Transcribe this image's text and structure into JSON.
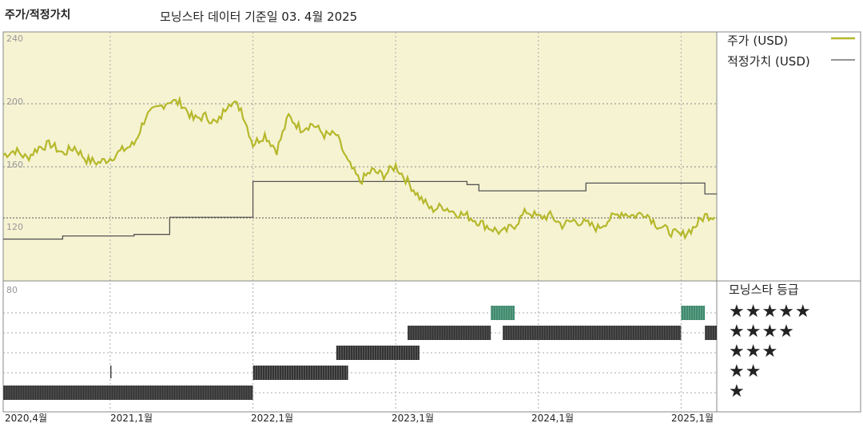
{
  "header": {
    "title": "주가/적정가치",
    "subtitle": "모닝스타 데이터 기준일 03. 4월 2025"
  },
  "legend": {
    "price_label": "주가 (USD)",
    "fair_label": "적정가치 (USD)",
    "price_color": "#b5b82a",
    "fair_color": "#555555"
  },
  "rating": {
    "title": "모닝스타 등급",
    "stars": [
      "★★★★★",
      "★★★★",
      "★★★",
      "★★",
      "★"
    ]
  },
  "chart_data": {
    "type": "line",
    "y_ticks": [
      "240",
      "200",
      "160",
      "120",
      "80"
    ],
    "ylim": [
      80,
      240
    ],
    "x_ticks": [
      "2020,4월",
      "2021,1월",
      "2022,1월",
      "2023,1월",
      "2024,1월",
      "2025,1월"
    ],
    "x_tick_dates": [
      "2020-04",
      "2021-01",
      "2022-01",
      "2023-01",
      "2024-01",
      "2025-01"
    ],
    "price_series": {
      "name": "주가 (USD)",
      "x": [
        "2020-04",
        "2020-05",
        "2020-06",
        "2020-07",
        "2020-08",
        "2020-09",
        "2020-10",
        "2020-11",
        "2020-12",
        "2021-01",
        "2021-02",
        "2021-03",
        "2021-04",
        "2021-05",
        "2021-06",
        "2021-07",
        "2021-08",
        "2021-09",
        "2021-10",
        "2021-11",
        "2021-12",
        "2022-01",
        "2022-02",
        "2022-03",
        "2022-04",
        "2022-05",
        "2022-06",
        "2022-07",
        "2022-08",
        "2022-09",
        "2022-10",
        "2022-11",
        "2022-12",
        "2023-01",
        "2023-02",
        "2023-03",
        "2023-04",
        "2023-05",
        "2023-06",
        "2023-07",
        "2023-08",
        "2023-09",
        "2023-10",
        "2023-11",
        "2023-12",
        "2024-01",
        "2024-02",
        "2024-03",
        "2024-04",
        "2024-05",
        "2024-06",
        "2024-07",
        "2024-08",
        "2024-09",
        "2024-10",
        "2024-11",
        "2024-12",
        "2025-01",
        "2025-02",
        "2025-03"
      ],
      "values": [
        165,
        168,
        163,
        170,
        172,
        166,
        170,
        162,
        160,
        163,
        168,
        172,
        190,
        195,
        200,
        198,
        188,
        190,
        185,
        200,
        195,
        172,
        178,
        168,
        190,
        182,
        185,
        178,
        178,
        160,
        148,
        155,
        152,
        158,
        148,
        138,
        130,
        132,
        128,
        126,
        122,
        118,
        115,
        120,
        129,
        125,
        126,
        120,
        123,
        121,
        118,
        124,
        128,
        126,
        128,
        120,
        116,
        113,
        118,
        126
      ]
    },
    "fair_value_series": {
      "name": "적정가치 (USD)",
      "x": [
        "2020-04",
        "2020-09",
        "2021-03",
        "2021-06",
        "2021-12",
        "2022-01",
        "2023-01",
        "2023-07",
        "2023-08",
        "2024-04",
        "2024-05",
        "2025-02",
        "2025-03"
      ],
      "values": [
        111,
        113,
        114,
        125,
        125,
        148,
        148,
        146,
        142,
        142,
        147,
        147,
        140
      ]
    },
    "rating_history": [
      {
        "from": "2020-04",
        "to": "2021-12",
        "stars": 1
      },
      {
        "from": "2021-01",
        "to": "2021-01",
        "stars": 2
      },
      {
        "from": "2022-01",
        "to": "2022-08",
        "stars": 2
      },
      {
        "from": "2022-08",
        "to": "2023-02",
        "stars": 3
      },
      {
        "from": "2023-02",
        "to": "2023-08",
        "stars": 4
      },
      {
        "from": "2023-09",
        "to": "2023-10",
        "stars": 5
      },
      {
        "from": "2023-10",
        "to": "2024-12",
        "stars": 4
      },
      {
        "from": "2025-01",
        "to": "2025-02",
        "stars": 5
      },
      {
        "from": "2025-03",
        "to": "2025-03",
        "stars": 4
      }
    ]
  }
}
